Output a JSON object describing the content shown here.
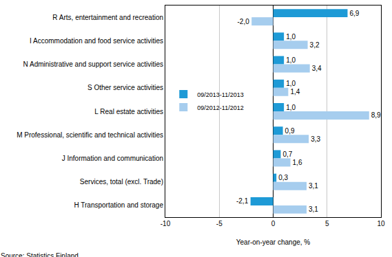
{
  "chart_data": {
    "type": "bar",
    "orientation": "horizontal",
    "x_label": "Year-on-year change, %",
    "annotations": [
      "Source: Statistics Finland"
    ],
    "categories": [
      "R Arts, entertainment and recreation",
      "I Accommodation and food service activities",
      "N Administrative and support service activities",
      "S Other service activities",
      "L Real estate activities",
      "M Professional, scientific and technical activities",
      "J Information and communication",
      "Services, total (excl. Trade)",
      "H Transportation and storage"
    ],
    "series": [
      {
        "name": "09/2013-11/2013",
        "color": "#1e9ad6",
        "values": [
          6.9,
          1.0,
          1.0,
          1.0,
          1.0,
          0.9,
          0.7,
          0.3,
          -2.1
        ],
        "value_labels": [
          "6,9",
          "1,0",
          "1,0",
          "1,0",
          "1,0",
          "0,9",
          "0,7",
          "0,3",
          "-2,1"
        ]
      },
      {
        "name": "09/2012-11/2012",
        "color": "#a6cdee",
        "values": [
          -2.0,
          3.2,
          3.4,
          1.4,
          8.9,
          3.3,
          1.6,
          3.1,
          3.1
        ],
        "value_labels": [
          "-2,0",
          "3,2",
          "3,4",
          "1,4",
          "8,9",
          "3,3",
          "1,6",
          "3,1",
          "3,1"
        ]
      }
    ],
    "xlim": [
      -10,
      10
    ],
    "xticks": [
      -10,
      -5,
      0,
      5,
      10
    ],
    "grid": true,
    "legend": "left",
    "data_labels": true
  }
}
